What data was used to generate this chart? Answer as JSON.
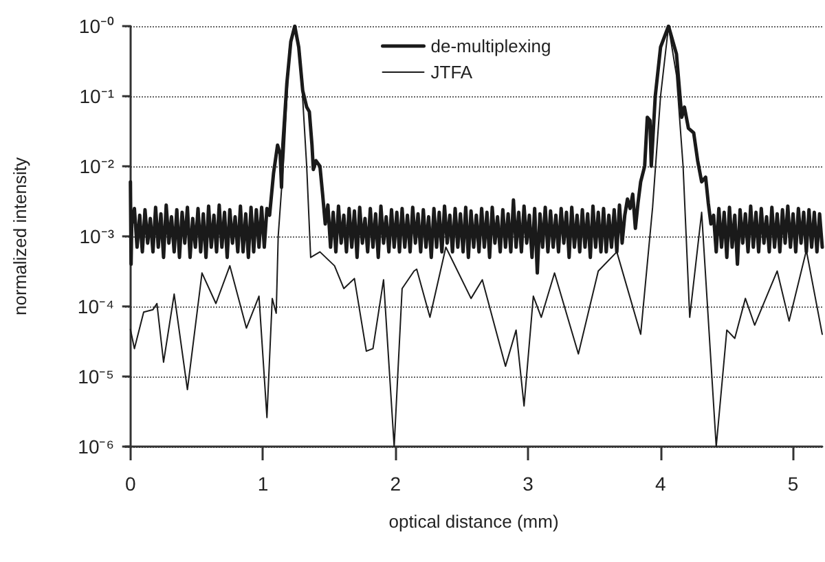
{
  "chart_data": {
    "type": "line",
    "xlabel": "optical distance (mm)",
    "ylabel": "normalized intensity",
    "log": "y",
    "grid": "y",
    "legend": "top",
    "marker": "none",
    "line_style": "solid",
    "xlim": [
      -0.04,
      5.22
    ],
    "xticks": [
      0,
      1,
      2,
      3,
      4,
      5
    ],
    "ylim": [
      1e-06,
      1
    ],
    "yticks": [
      {
        "value": 1e-06,
        "label": "10⁻⁶"
      },
      {
        "value": 1e-05,
        "label": "10⁻⁵"
      },
      {
        "value": 0.0001,
        "label": "10⁻⁴"
      },
      {
        "value": 0.001,
        "label": "10⁻³"
      },
      {
        "value": 0.01,
        "label": "10⁻²"
      },
      {
        "value": 0.1,
        "label": "10⁻¹"
      },
      {
        "value": 1,
        "label": "10⁻⁰"
      }
    ],
    "series": [
      {
        "name": "de-multiplexing",
        "color": "#1a1a1a",
        "x": [
          0,
          0.005,
          0.01,
          0.03,
          0.05,
          0.07,
          0.09,
          0.11,
          0.13,
          0.15,
          0.17,
          0.19,
          0.21,
          0.23,
          0.25,
          0.27,
          0.29,
          0.31,
          0.33,
          0.35,
          0.37,
          0.39,
          0.41,
          0.43,
          0.45,
          0.47,
          0.49,
          0.51,
          0.53,
          0.55,
          0.57,
          0.59,
          0.61,
          0.63,
          0.65,
          0.67,
          0.69,
          0.71,
          0.73,
          0.75,
          0.77,
          0.79,
          0.81,
          0.83,
          0.85,
          0.87,
          0.89,
          0.91,
          0.93,
          0.95,
          0.97,
          0.99,
          1.01,
          1.03,
          1.05,
          1.08,
          1.11,
          1.13,
          1.14,
          1.15,
          1.18,
          1.21,
          1.24,
          1.27,
          1.3,
          1.33,
          1.35,
          1.37,
          1.38,
          1.4,
          1.43,
          1.45,
          1.47,
          1.49,
          1.51,
          1.53,
          1.55,
          1.57,
          1.59,
          1.61,
          1.63,
          1.65,
          1.67,
          1.69,
          1.71,
          1.73,
          1.75,
          1.77,
          1.79,
          1.81,
          1.83,
          1.85,
          1.87,
          1.89,
          1.91,
          1.93,
          1.95,
          1.97,
          1.99,
          2.01,
          2.03,
          2.05,
          2.07,
          2.09,
          2.11,
          2.13,
          2.15,
          2.17,
          2.19,
          2.21,
          2.23,
          2.25,
          2.27,
          2.29,
          2.31,
          2.33,
          2.35,
          2.37,
          2.39,
          2.41,
          2.43,
          2.45,
          2.47,
          2.49,
          2.51,
          2.53,
          2.55,
          2.57,
          2.59,
          2.61,
          2.63,
          2.65,
          2.67,
          2.69,
          2.71,
          2.73,
          2.75,
          2.77,
          2.79,
          2.81,
          2.83,
          2.85,
          2.87,
          2.89,
          2.91,
          2.93,
          2.95,
          2.97,
          2.99,
          3.01,
          3.03,
          3.05,
          3.07,
          3.09,
          3.11,
          3.13,
          3.15,
          3.17,
          3.19,
          3.21,
          3.23,
          3.25,
          3.27,
          3.29,
          3.31,
          3.33,
          3.35,
          3.37,
          3.39,
          3.41,
          3.43,
          3.45,
          3.47,
          3.49,
          3.51,
          3.53,
          3.55,
          3.57,
          3.59,
          3.61,
          3.63,
          3.65,
          3.67,
          3.69,
          3.71,
          3.73,
          3.75,
          3.77,
          3.79,
          3.81,
          3.83,
          3.85,
          3.88,
          3.9,
          3.92,
          3.93,
          3.96,
          4.0,
          4.06,
          4.12,
          4.16,
          4.18,
          4.21,
          4.25,
          4.28,
          4.31,
          4.34,
          4.36,
          4.38,
          4.4,
          4.42,
          4.44,
          4.46,
          4.48,
          4.5,
          4.52,
          4.54,
          4.56,
          4.58,
          4.6,
          4.62,
          4.64,
          4.66,
          4.68,
          4.7,
          4.72,
          4.74,
          4.76,
          4.78,
          4.8,
          4.82,
          4.84,
          4.86,
          4.88,
          4.9,
          4.92,
          4.94,
          4.96,
          4.98,
          5.0,
          5.02,
          5.04,
          5.06,
          5.08,
          5.1,
          5.12,
          5.14,
          5.16,
          5.18,
          5.2,
          5.22
        ],
        "values": [
          0.006,
          0.0004,
          0.0015,
          0.0025,
          0.0007,
          0.002,
          0.0006,
          0.0024,
          0.0008,
          0.0018,
          0.0006,
          0.0026,
          0.0007,
          0.0021,
          0.0005,
          0.0028,
          0.0008,
          0.0019,
          0.0006,
          0.0024,
          0.0005,
          0.0022,
          0.0008,
          0.0026,
          0.0005,
          0.0018,
          0.0007,
          0.0025,
          0.0006,
          0.0021,
          0.0005,
          0.0027,
          0.0007,
          0.002,
          0.0006,
          0.0028,
          0.0007,
          0.0022,
          0.0005,
          0.0024,
          0.0008,
          0.0019,
          0.0006,
          0.0027,
          0.0006,
          0.0021,
          0.0005,
          0.0026,
          0.0006,
          0.0024,
          0.0007,
          0.0026,
          0.0007,
          0.0025,
          0.002,
          0.008,
          0.02,
          0.015,
          0.005,
          0.02,
          0.15,
          0.6,
          1,
          0.5,
          0.12,
          0.07,
          0.06,
          0.02,
          0.009,
          0.012,
          0.01,
          0.004,
          0.0015,
          0.0028,
          0.0007,
          0.0022,
          0.0006,
          0.0027,
          0.0008,
          0.002,
          0.0006,
          0.0025,
          0.0007,
          0.0023,
          0.0005,
          0.0026,
          0.0008,
          0.0018,
          0.0006,
          0.0025,
          0.0007,
          0.0021,
          0.0005,
          0.0027,
          0.0008,
          0.0019,
          0.0006,
          0.0024,
          0.0007,
          0.0022,
          0.0006,
          0.0025,
          0.0007,
          0.002,
          0.0006,
          0.0026,
          0.0008,
          0.0021,
          0.0006,
          0.0024,
          0.0007,
          0.0019,
          0.0005,
          0.0025,
          0.0007,
          0.0022,
          0.0006,
          0.0027,
          0.0008,
          0.002,
          0.0006,
          0.0025,
          0.0007,
          0.0021,
          0.0006,
          0.0026,
          0.0005,
          0.0023,
          0.0007,
          0.002,
          0.0006,
          0.0025,
          0.0007,
          0.0022,
          0.0005,
          0.0026,
          0.0008,
          0.0019,
          0.0006,
          0.0024,
          0.0007,
          0.0021,
          0.0006,
          0.0033,
          0.0007,
          0.0022,
          0.0006,
          0.0027,
          0.0008,
          0.002,
          0.0005,
          0.0025,
          0.0003,
          0.0021,
          0.0007,
          0.0026,
          0.0006,
          0.0023,
          0.0007,
          0.002,
          0.0006,
          0.0025,
          0.0008,
          0.0022,
          0.0005,
          0.0026,
          0.0007,
          0.002,
          0.0006,
          0.0024,
          0.0007,
          0.0021,
          0.0005,
          0.0027,
          0.0007,
          0.0022,
          0.0006,
          0.0025,
          0.0006,
          0.002,
          0.0007,
          0.0024,
          0.0006,
          0.0028,
          0.0008,
          0.002,
          0.0034,
          0.0025,
          0.004,
          0.0013,
          0.003,
          0.006,
          0.01,
          0.05,
          0.045,
          0.01,
          0.1,
          0.5,
          1,
          0.4,
          0.05,
          0.07,
          0.035,
          0.03,
          0.012,
          0.006,
          0.007,
          0.003,
          0.0015,
          0.002,
          0.0006,
          0.0025,
          0.0007,
          0.0022,
          0.0005,
          0.0026,
          0.0007,
          0.002,
          0.0004,
          0.0024,
          0.0008,
          0.0021,
          0.0006,
          0.0027,
          0.0007,
          0.0022,
          0.0006,
          0.0025,
          0.0008,
          0.0019,
          0.0006,
          0.0026,
          0.0007,
          0.0021,
          0.0006,
          0.0024,
          0.0008,
          0.0027,
          0.0007,
          0.0021,
          0.0006,
          0.0025,
          0.0008,
          0.0022,
          0.0006,
          0.0024,
          0.0007,
          0.0022,
          0.0006,
          0.0021,
          0.0007
        ]
      },
      {
        "name": "JTFA",
        "color": "#1a1a1a",
        "x": [
          0,
          0.03,
          0.1,
          0.17,
          0.2,
          0.25,
          0.33,
          0.43,
          0.54,
          0.645,
          0.75,
          0.875,
          0.97,
          1.03,
          1.07,
          1.1,
          1.115,
          1.16,
          1.2,
          1.235,
          1.28,
          1.33,
          1.36,
          1.43,
          1.54,
          1.61,
          1.69,
          1.78,
          1.83,
          1.91,
          1.99,
          2.05,
          2.14,
          2.16,
          2.26,
          2.38,
          2.57,
          2.655,
          2.83,
          2.91,
          2.97,
          3.04,
          3.1,
          3.2,
          3.38,
          3.53,
          3.67,
          3.85,
          3.94,
          4.0,
          4.06,
          4.12,
          4.17,
          4.22,
          4.31,
          4.42,
          4.5,
          4.56,
          4.64,
          4.71,
          4.88,
          4.97,
          5.1,
          5.22
        ],
        "values": [
          4.7e-05,
          2.5e-05,
          8.3e-05,
          9e-05,
          0.00011,
          1.6e-05,
          0.00015,
          6.5e-06,
          0.0003,
          0.00011,
          0.00038,
          4.9e-05,
          0.00014,
          2.6e-06,
          0.00013,
          8e-05,
          0.001,
          0.016,
          0.5,
          1,
          0.4,
          0.01,
          0.0005,
          0.0006,
          0.00038,
          0.00018,
          0.00025,
          2.3e-05,
          2.5e-05,
          0.00024,
          1e-06,
          0.00018,
          0.00032,
          0.00034,
          7e-05,
          0.0007,
          0.00013,
          0.00024,
          1.4e-05,
          4.6e-05,
          3.8e-06,
          0.00014,
          7e-05,
          0.0003,
          2.1e-05,
          0.00032,
          0.0006,
          4e-05,
          0.0026,
          0.1,
          1,
          0.2,
          0.01,
          7e-05,
          0.0022,
          1e-06,
          4.6e-05,
          3.5e-05,
          0.00013,
          5.4e-05,
          0.00032,
          6.2e-05,
          0.00063,
          4e-05
        ]
      }
    ]
  }
}
